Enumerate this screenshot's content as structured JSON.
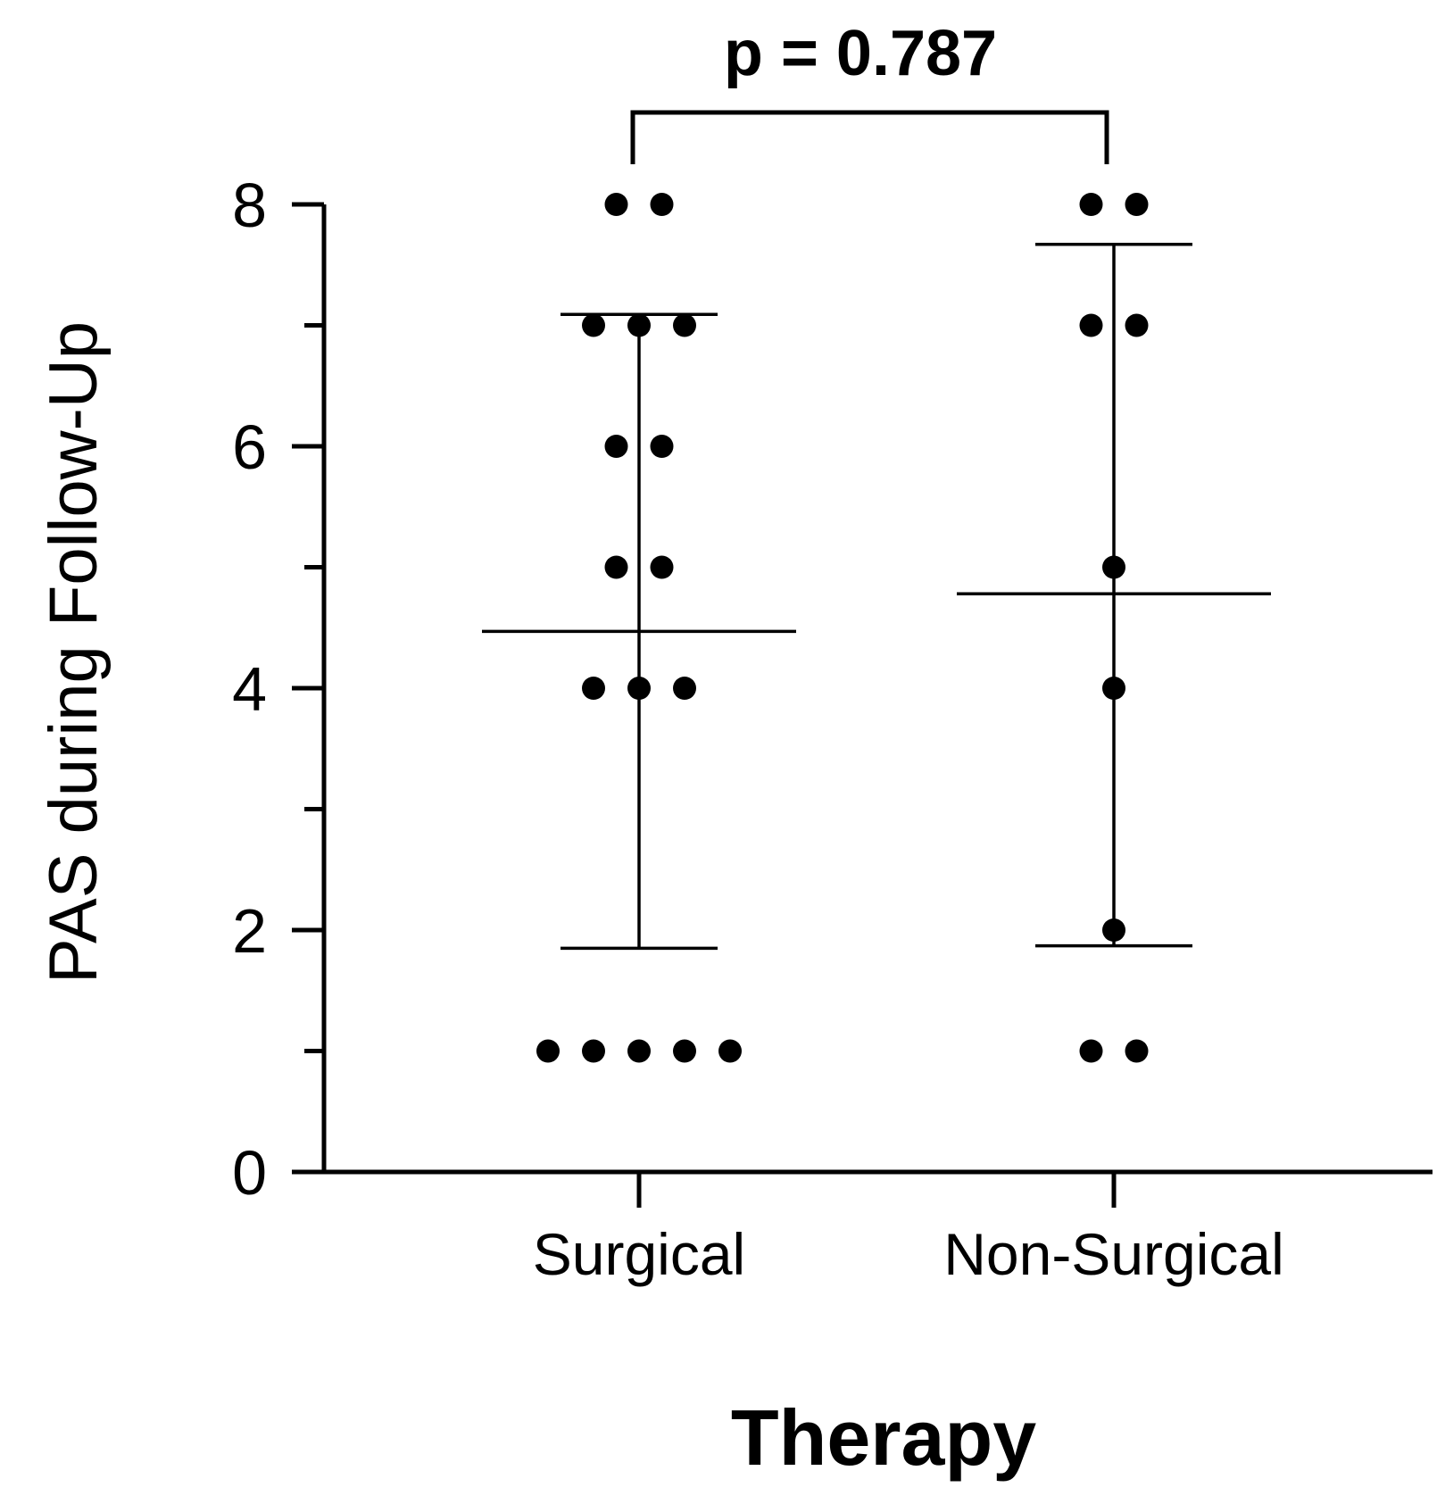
{
  "chart_data": {
    "type": "scatter",
    "subtype": "dot-plot with mean and SD error bars",
    "categories": [
      "Surgical",
      "Non-Surgical"
    ],
    "xlabel": "Therapy",
    "ylabel": "PAS during Follow-Up",
    "ylim": [
      0,
      8
    ],
    "yticks_major": [
      0,
      2,
      4,
      6,
      8
    ],
    "yticks_minor": [
      1,
      3,
      5,
      7
    ],
    "grid": false,
    "legend": "none",
    "series": [
      {
        "category": "Surgical",
        "values": [
          8,
          8,
          7,
          7,
          7,
          6,
          6,
          5,
          5,
          4,
          4,
          4,
          1,
          1,
          1,
          1,
          1
        ],
        "mean": 4.47,
        "sd_lower": 1.85,
        "sd_upper": 7.09
      },
      {
        "category": "Non-Surgical",
        "values": [
          8,
          8,
          7,
          7,
          5,
          4,
          2,
          1,
          1
        ],
        "mean": 4.78,
        "sd_lower": 1.87,
        "sd_upper": 7.67
      }
    ],
    "annotation": {
      "text": "p = 0.787",
      "between": [
        "Surgical",
        "Non-Surgical"
      ]
    },
    "colors": {
      "points": "#000000",
      "lines": "#000000",
      "background": "#ffffff"
    }
  }
}
